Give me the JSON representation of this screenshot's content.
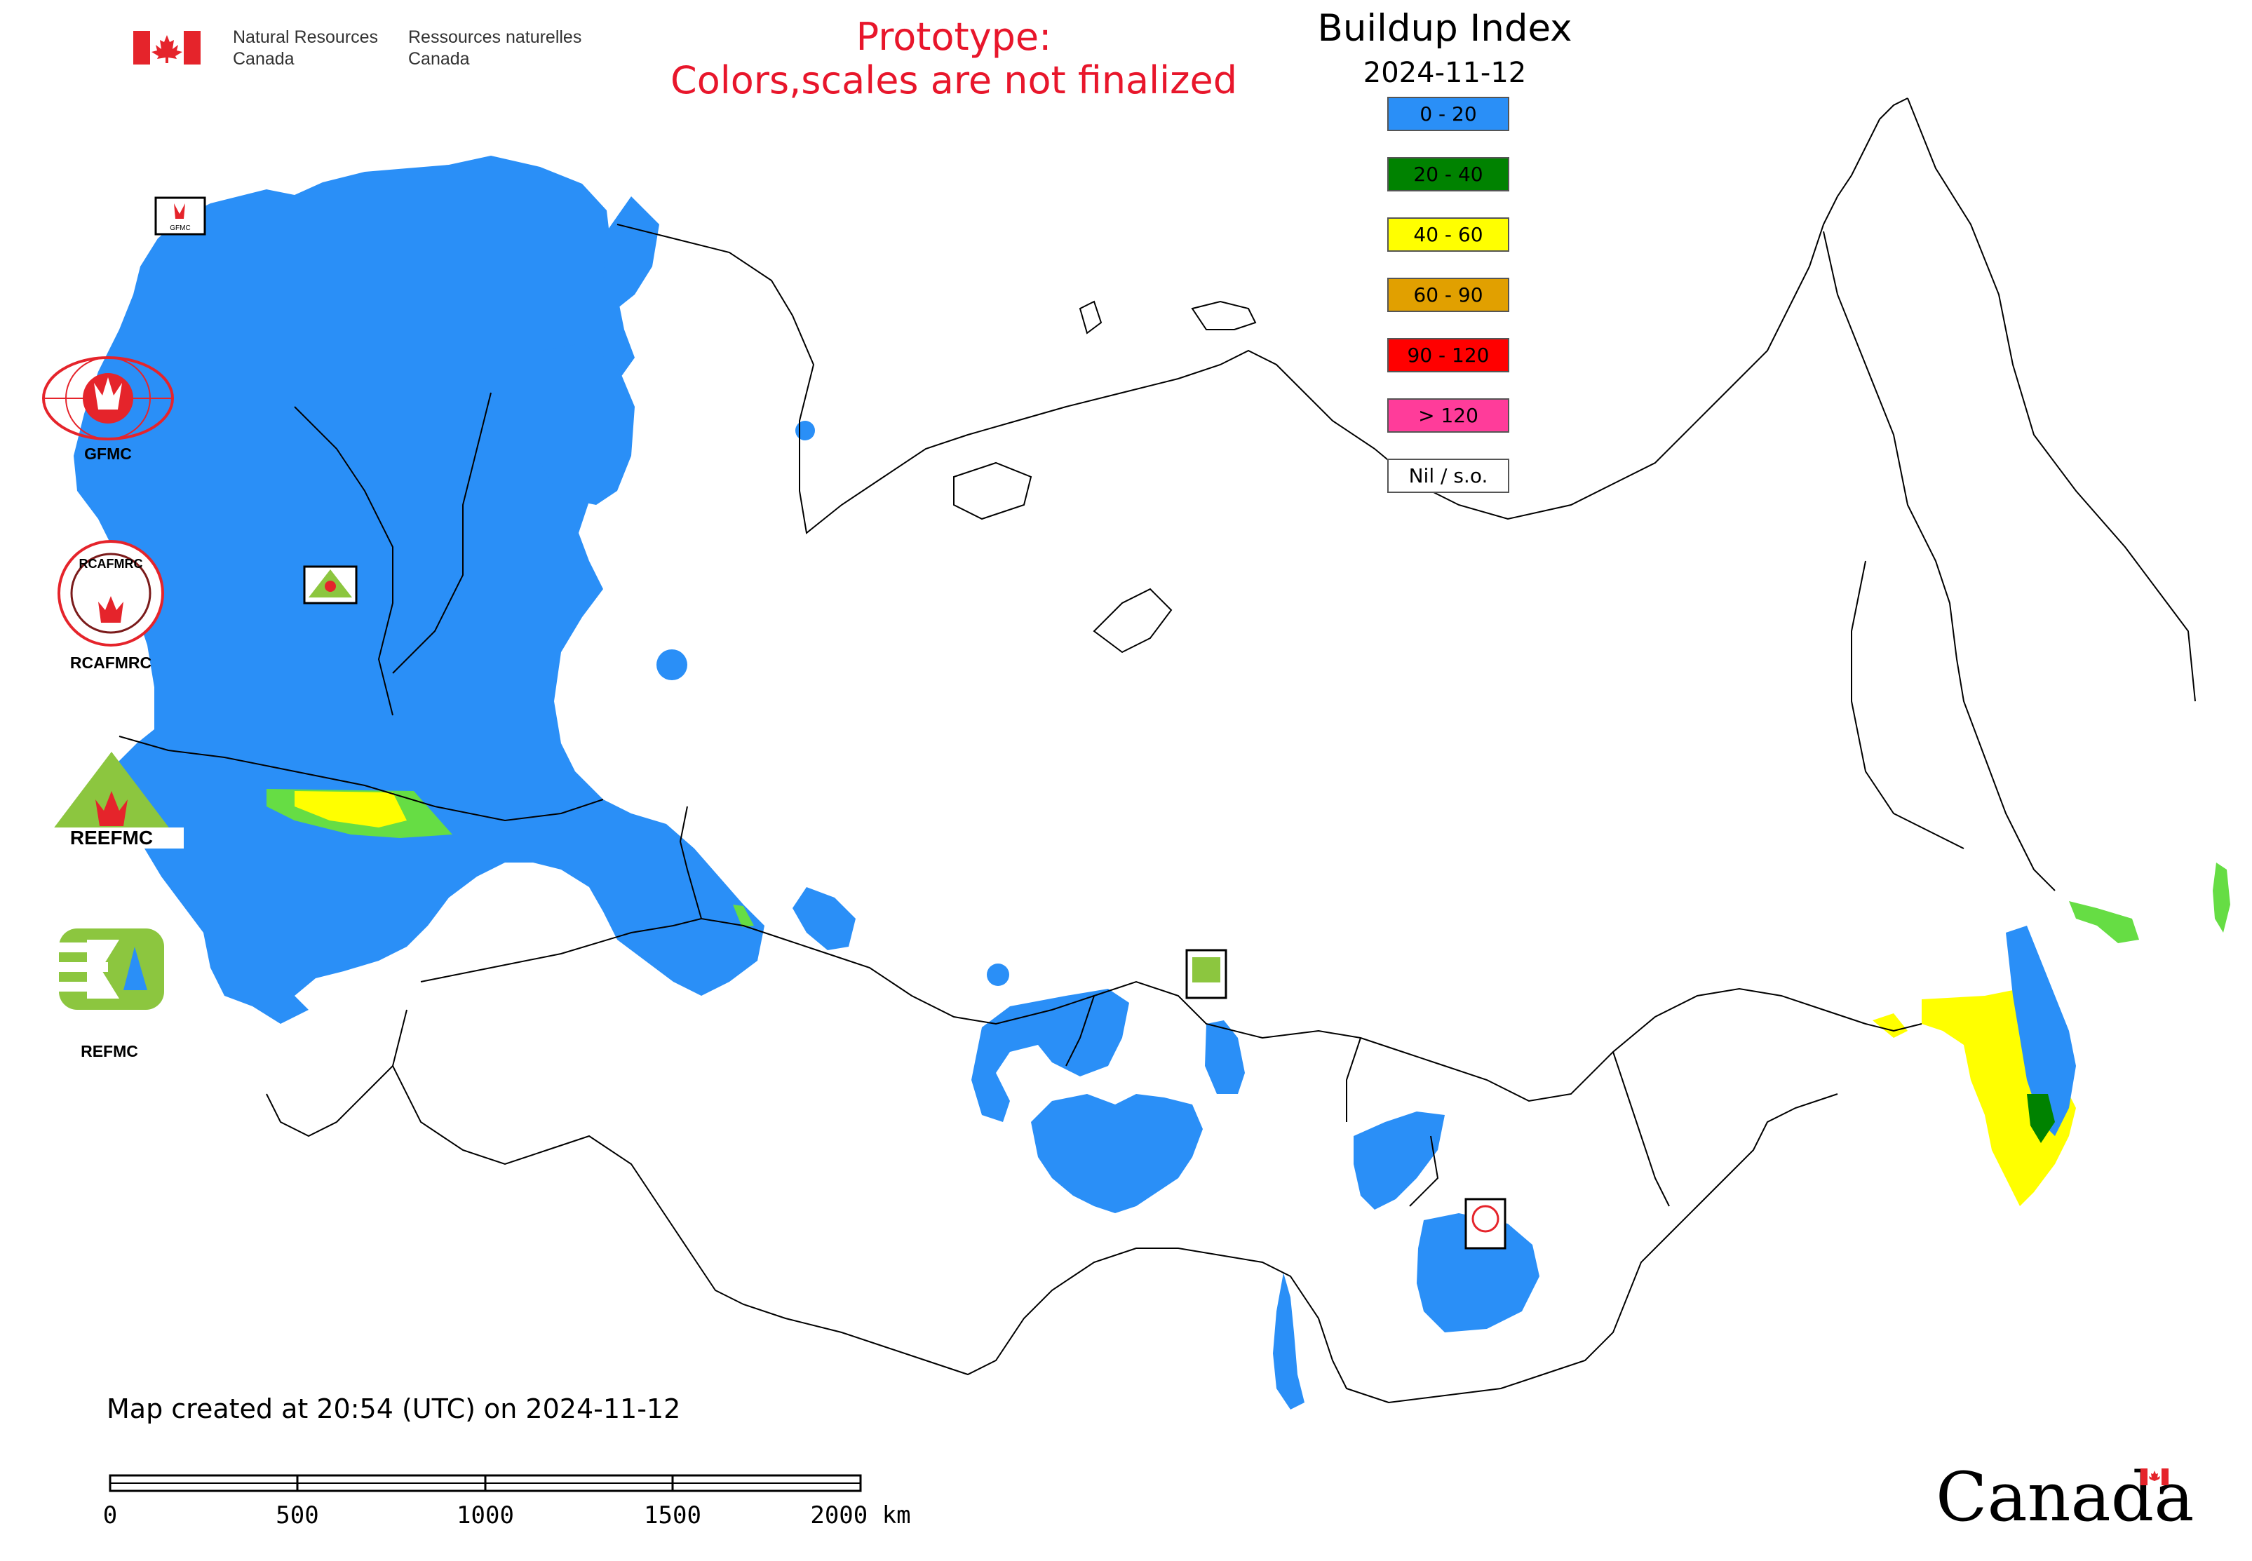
{
  "header": {
    "nrcan_en": [
      "Natural Resources",
      "Canada"
    ],
    "nrcan_fr": [
      "Ressources naturelles",
      "Canada"
    ],
    "prototype_line1": "Prototype:",
    "prototype_line2": "Colors,scales are not finalized"
  },
  "title": "Buildup Index",
  "date": "2024-11-12",
  "legend": [
    {
      "label": "0 - 20",
      "color": "#2a8ff7"
    },
    {
      "label": "20 - 40",
      "color": "#008200"
    },
    {
      "label": "40 - 60",
      "color": "#ffff00"
    },
    {
      "label": "60 - 90",
      "color": "#e1a000"
    },
    {
      "label": "90 - 120",
      "color": "#ff0000"
    },
    {
      "label": "> 120",
      "color": "#ff3c9a"
    },
    {
      "label": "Nil / s.o.",
      "color": "#ffffff"
    }
  ],
  "agencies": [
    {
      "label": "GFMC"
    },
    {
      "label": "RCAFMRC"
    },
    {
      "label": "REEFMC"
    },
    {
      "label": "REFMC"
    }
  ],
  "logo_text": {
    "rcafmrc_inner": "RCAFMRC",
    "reefmc_inner": "REEFMC",
    "small_gfmc": "GFMC"
  },
  "footer": {
    "created": "Map created at 20:54 (UTC) on 2024-11-12",
    "scale_ticks": [
      "0",
      "500",
      "1000",
      "1500",
      "2000 km"
    ],
    "wordmark": "Canada"
  },
  "colors": {
    "blue": "#2a8ff7",
    "green": "#008200",
    "yellow": "#ffff00",
    "lime": "#66dd44",
    "prototype_red": "#e8162b",
    "flag_red": "#e5242b"
  }
}
